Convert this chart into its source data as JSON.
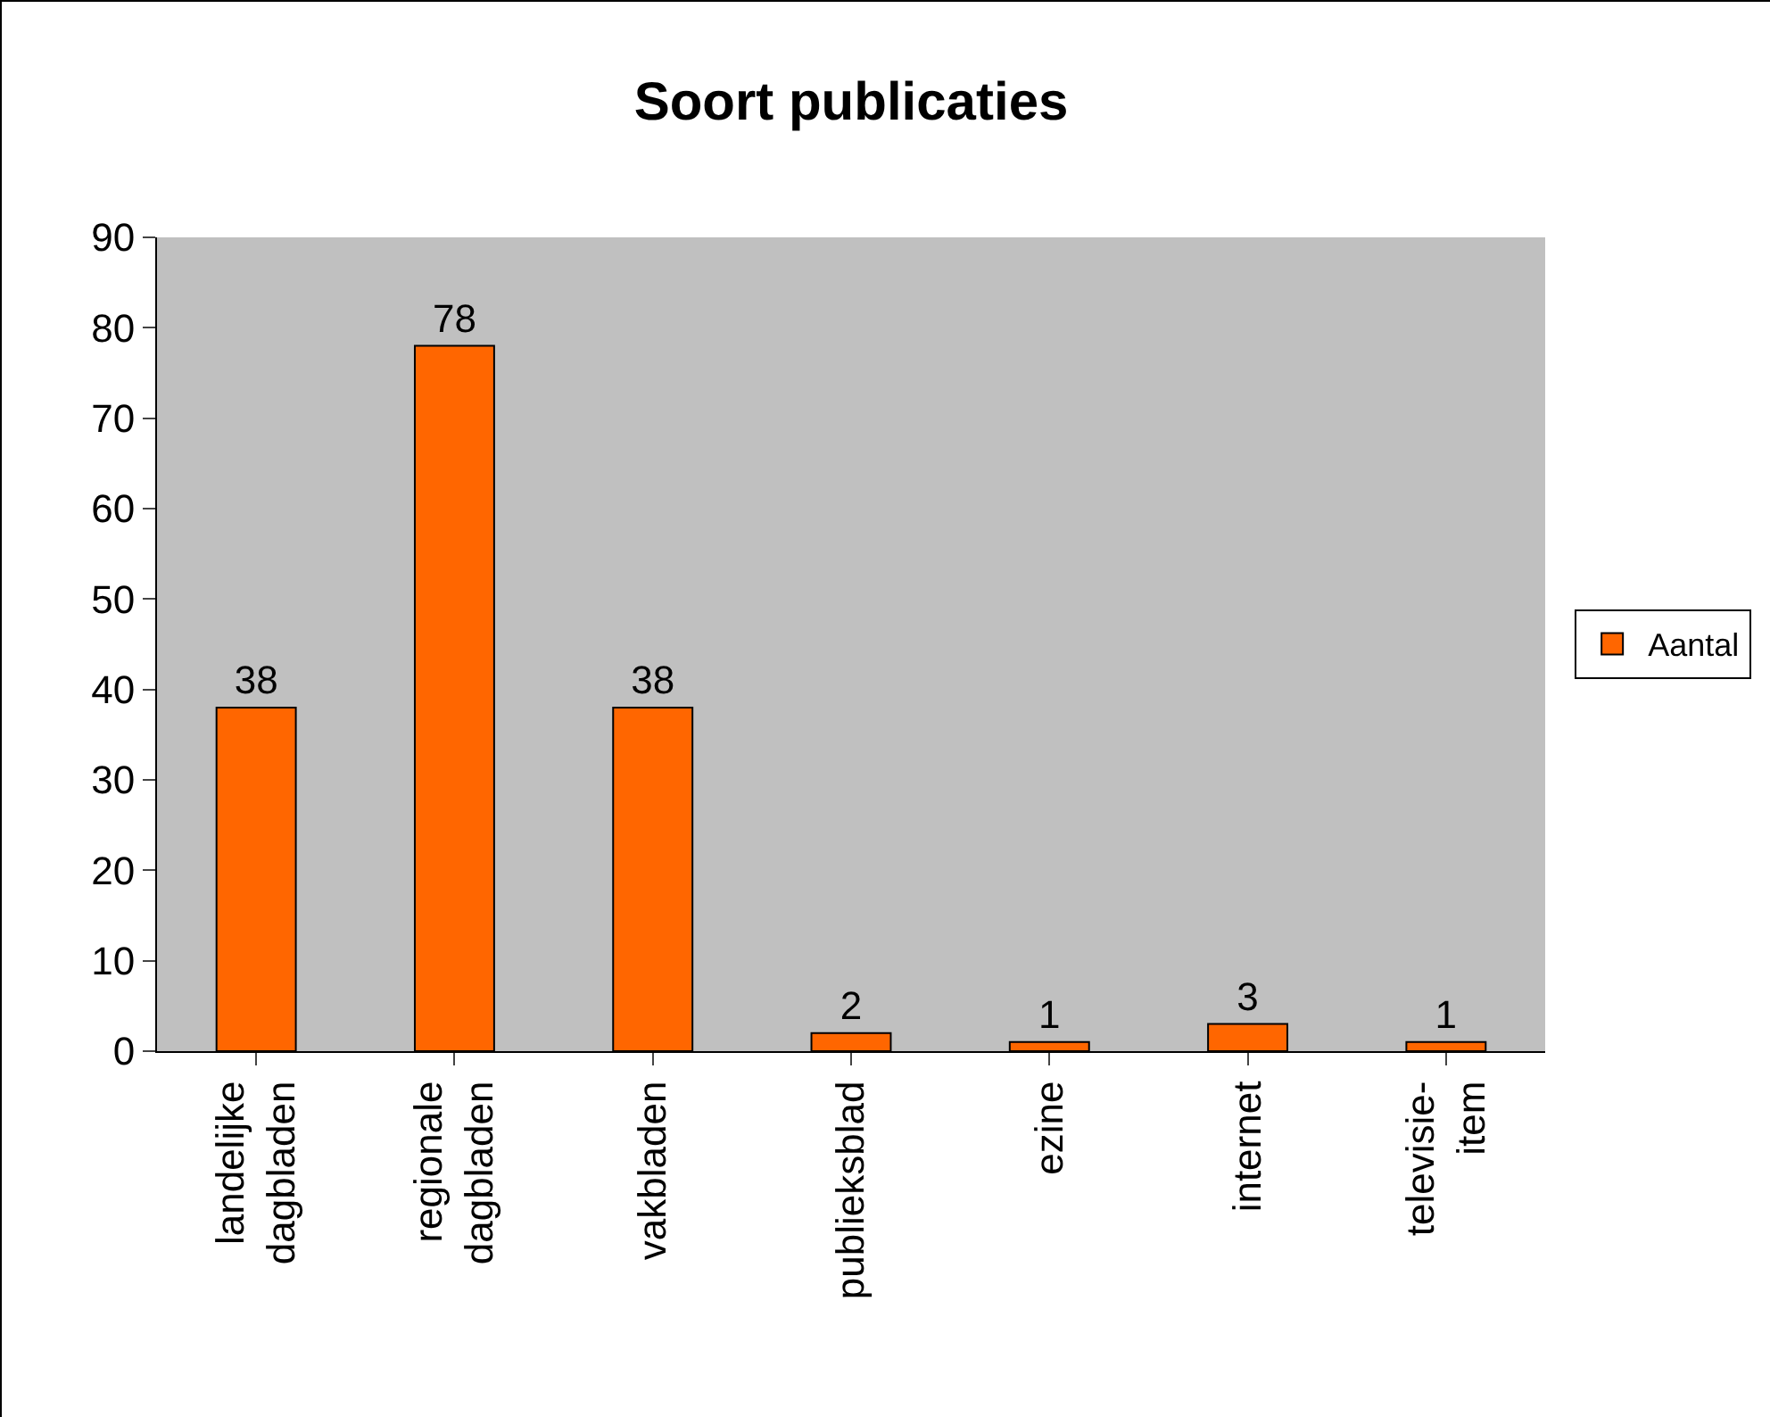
{
  "chart_data": {
    "type": "bar",
    "title": "Soort publicaties",
    "categories": [
      "landelijke dagbladen",
      "regionale dagbladen",
      "vakbladen",
      "publieksblad",
      "ezine",
      "internet",
      "televisie-item"
    ],
    "series": [
      {
        "name": "Aantal",
        "color": "#ff6600",
        "values": [
          38,
          78,
          38,
          2,
          1,
          3,
          1
        ]
      }
    ],
    "ylim": [
      0,
      90
    ],
    "yticks": [
      0,
      10,
      20,
      30,
      40,
      50,
      60,
      70,
      80,
      90
    ],
    "grid": false,
    "legend": "right",
    "data_labels": true
  }
}
